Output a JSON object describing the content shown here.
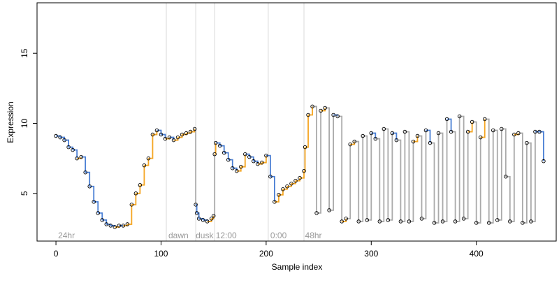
{
  "chart_data": {
    "type": "line",
    "title": "",
    "xlabel": "Sample index",
    "ylabel": "Expression",
    "xlim": [
      -18,
      476
    ],
    "ylim": [
      1.6,
      18.6
    ],
    "x_ticks": [
      0,
      100,
      200,
      300,
      400
    ],
    "y_ticks": [
      5,
      10,
      15
    ],
    "grid": false,
    "vertical_markers": [
      {
        "x": 105,
        "label": "",
        "color": "#d9d9d9"
      },
      {
        "x": 133,
        "label": "",
        "color": "#d9d9d9"
      },
      {
        "x": 151,
        "label": "",
        "color": "#d9d9d9"
      },
      {
        "x": 202,
        "label": "",
        "color": "#d9d9d9"
      },
      {
        "x": 236,
        "label": "",
        "color": "#d9d9d9"
      }
    ],
    "annotations": [
      {
        "text": "24hr",
        "x": 2,
        "y": 2.0
      },
      {
        "text": "dawn",
        "x": 107,
        "y": 2.0
      },
      {
        "text": "dusk",
        "x": 133,
        "y": 2.0
      },
      {
        "text": "12:00",
        "x": 152,
        "y": 2.0
      },
      {
        "text": "0:00",
        "x": 204,
        "y": 2.0
      },
      {
        "text": "48hr",
        "x": 237,
        "y": 2.0
      }
    ],
    "colors": {
      "line": "#aaaaaa",
      "up": "#f5a623",
      "down": "#4a7fd4",
      "point": "#000000"
    },
    "series": [
      {
        "name": "",
        "x": [
          0,
          4,
          8,
          12,
          16,
          20,
          24,
          28,
          32,
          36,
          40,
          44,
          48,
          52,
          56,
          60,
          64,
          68,
          72,
          76,
          80,
          84,
          88,
          92,
          96,
          100,
          104,
          108,
          112,
          116,
          120,
          124,
          128,
          132,
          133,
          134,
          136,
          140,
          144,
          148,
          150,
          151,
          152,
          156,
          160,
          164,
          168,
          172,
          176,
          180,
          184,
          188,
          192,
          196,
          200,
          204,
          208,
          212,
          216,
          220,
          224,
          228,
          232,
          236,
          237,
          240,
          244,
          248,
          252,
          256,
          260,
          264,
          268,
          272,
          276,
          280,
          284,
          288,
          292,
          296,
          300,
          304,
          308,
          312,
          316,
          320,
          324,
          328,
          332,
          336,
          340,
          344,
          348,
          352,
          356,
          360,
          364,
          368,
          372,
          376,
          380,
          384,
          388,
          392,
          396,
          400,
          404,
          408,
          412,
          416,
          420,
          424,
          428,
          432,
          436,
          440,
          444,
          448,
          452,
          456,
          460,
          464
        ],
        "y": [
          9.1,
          9.0,
          8.8,
          8.3,
          8.1,
          7.5,
          7.6,
          6.5,
          5.5,
          4.4,
          3.6,
          3.1,
          2.8,
          2.7,
          2.6,
          2.7,
          2.7,
          2.8,
          4.2,
          5.0,
          5.6,
          7.0,
          7.5,
          9.2,
          9.5,
          9.2,
          8.9,
          9.0,
          8.8,
          9.0,
          9.2,
          9.3,
          9.4,
          9.6,
          4.2,
          3.6,
          3.2,
          3.1,
          3.0,
          3.2,
          3.4,
          7.8,
          8.6,
          8.4,
          7.9,
          7.4,
          6.8,
          6.6,
          6.9,
          7.8,
          7.6,
          7.3,
          7.1,
          7.2,
          7.7,
          6.2,
          4.4,
          4.9,
          5.3,
          5.5,
          5.7,
          5.9,
          6.1,
          6.6,
          8.3,
          10.6,
          11.2,
          3.6,
          10.9,
          11.1,
          3.8,
          10.6,
          10.5,
          3.0,
          3.2,
          8.5,
          8.7,
          3.0,
          9.1,
          3.1,
          9.3,
          8.9,
          3.0,
          9.6,
          3.1,
          9.3,
          8.8,
          3.0,
          9.4,
          3.0,
          8.7,
          9.1,
          3.2,
          9.5,
          8.6,
          2.9,
          9.3,
          3.0,
          10.3,
          9.4,
          3.0,
          10.5,
          3.2,
          9.4,
          10.1,
          2.9,
          9.0,
          10.3,
          2.9,
          9.5,
          3.1,
          9.6,
          6.2,
          3.0,
          9.2,
          9.3,
          2.9,
          8.6,
          3.0,
          9.4,
          9.4,
          7.3
        ]
      }
    ]
  }
}
